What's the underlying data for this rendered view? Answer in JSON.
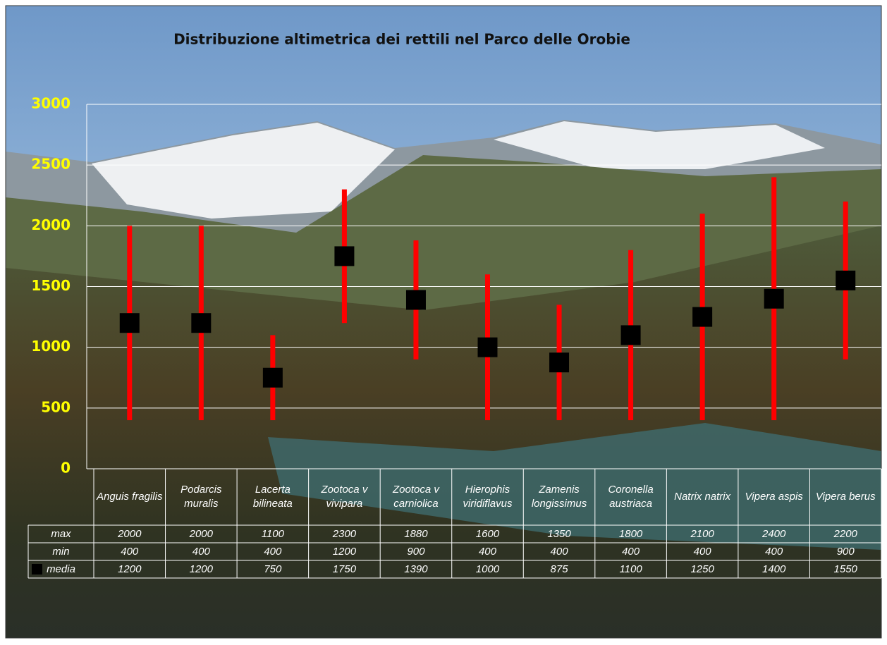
{
  "chart_data": {
    "type": "range",
    "title": "Distribuzione altimetrica dei rettili nel Parco delle Orobie",
    "categories": [
      "Anguis fragilis",
      "Podarcis muralis",
      "Lacerta bilineata",
      "Zootoca v vivipara",
      "Zootoca v carniolica",
      "Hierophis viridiflavus",
      "Zamenis longissimus",
      "Coronella austriaca",
      "Natrix natrix",
      "Vipera aspis",
      "Vipera berus"
    ],
    "series": [
      {
        "name": "max",
        "color": "#ff0000",
        "values": [
          2000,
          2000,
          1100,
          2300,
          1880,
          1600,
          1350,
          1800,
          2100,
          2400,
          2200
        ]
      },
      {
        "name": "min",
        "color": "#ff0000",
        "values": [
          400,
          400,
          400,
          1200,
          900,
          400,
          400,
          400,
          400,
          400,
          900
        ]
      },
      {
        "name": "media",
        "color": "#000000",
        "values": [
          1200,
          1200,
          750,
          1750,
          1390,
          1000,
          875,
          1100,
          1250,
          1400,
          1550
        ]
      }
    ],
    "ylim": [
      0,
      3000
    ],
    "yticks": [
      0,
      500,
      1000,
      1500,
      2000,
      2500,
      3000
    ],
    "grid": true,
    "tick_color": "#ffff00"
  }
}
